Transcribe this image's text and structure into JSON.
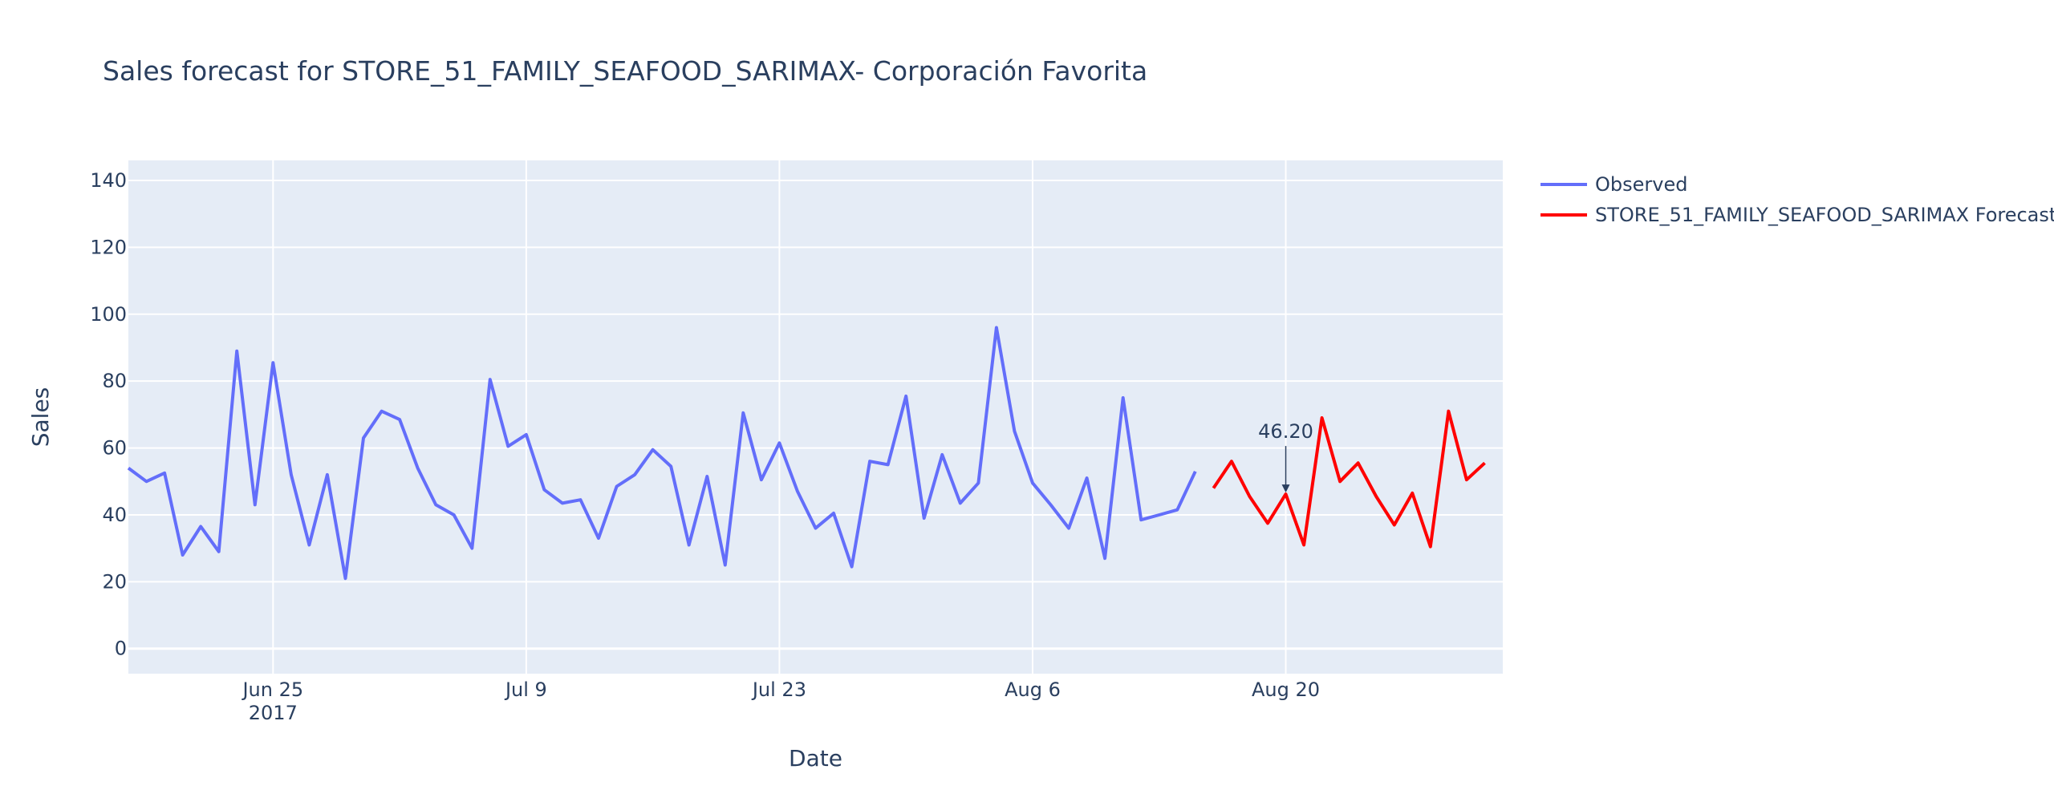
{
  "chart_data": {
    "type": "line",
    "title": "Sales forecast for STORE_51_FAMILY_SEAFOOD_SARIMAX- Corporación Favorita",
    "xlabel": "Date",
    "ylabel": "Sales",
    "xlim": [
      "2017-06-17",
      "2017-09-01"
    ],
    "ylim": [
      -7.5,
      146
    ],
    "yticks": [
      0,
      20,
      40,
      60,
      80,
      100,
      120,
      140
    ],
    "xticks": [
      {
        "date": "2017-06-25",
        "label": "Jun 25",
        "sublabel": "2017"
      },
      {
        "date": "2017-07-09",
        "label": "Jul 9",
        "sublabel": ""
      },
      {
        "date": "2017-07-23",
        "label": "Jul 23",
        "sublabel": ""
      },
      {
        "date": "2017-08-06",
        "label": "Aug 6",
        "sublabel": ""
      },
      {
        "date": "2017-08-20",
        "label": "Aug 20",
        "sublabel": ""
      }
    ],
    "grid": true,
    "legend_position": "top-right",
    "series": [
      {
        "name": "Observed",
        "color": "#636efa",
        "start_date": "2017-06-17",
        "values": [
          54,
          50,
          52.5,
          28,
          36.5,
          29,
          89,
          43,
          85.5,
          52,
          31,
          52,
          21,
          63,
          71,
          68.5,
          54,
          43,
          40,
          30,
          80.5,
          60.5,
          64,
          47.5,
          43.5,
          44.5,
          33,
          48.5,
          52,
          59.5,
          54.5,
          31,
          51.5,
          25,
          70.5,
          50.5,
          61.5,
          47,
          36,
          40.5,
          24.5,
          56,
          55,
          75.5,
          39,
          58,
          43.5,
          49.5,
          96,
          65,
          49.5,
          43,
          36,
          51,
          27,
          75,
          38.5,
          40,
          41.5,
          53
        ]
      },
      {
        "name": "STORE_51_FAMILY_SEAFOOD_SARIMAX Forecast",
        "color": "#ff0000",
        "start_date": "2017-08-16",
        "values": [
          48,
          56,
          45.5,
          37.5,
          46.2,
          31,
          69,
          50,
          55.5,
          45.5,
          37,
          46.5,
          30.5,
          71,
          50.5,
          55.5
        ]
      }
    ],
    "annotations": [
      {
        "date": "2017-08-20",
        "value": 46.2,
        "text": "46.20"
      }
    ]
  }
}
